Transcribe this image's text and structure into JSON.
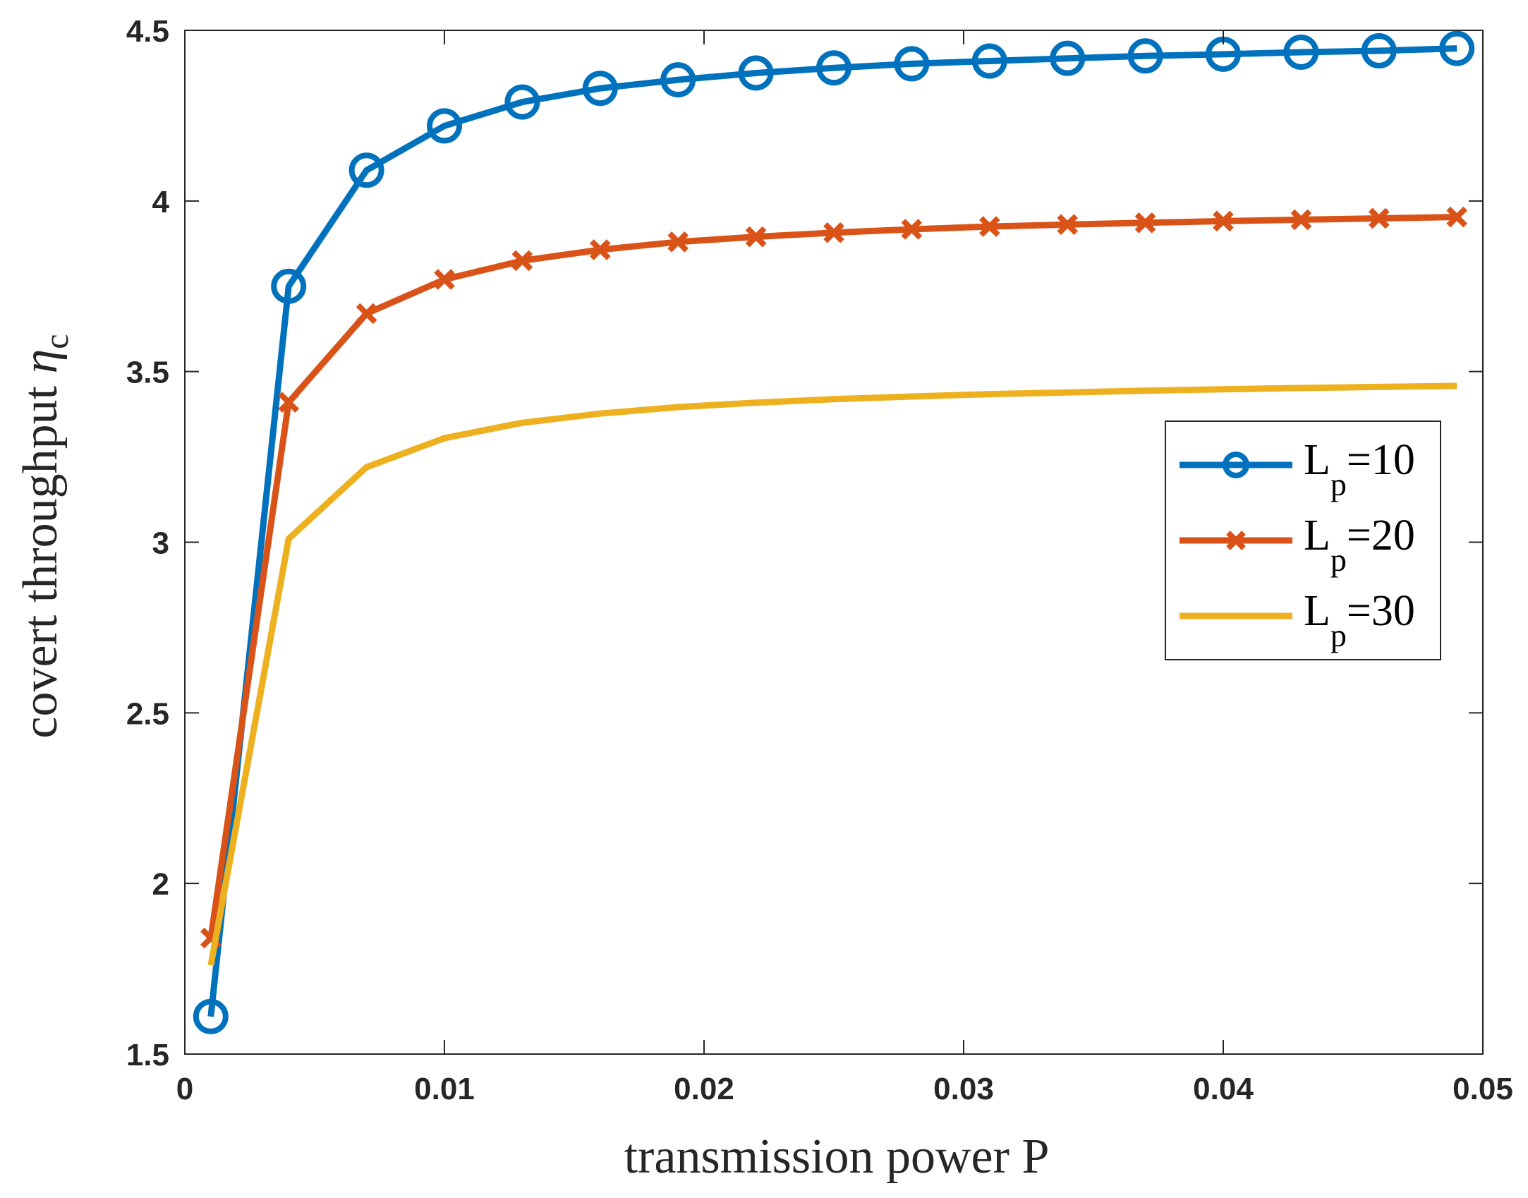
{
  "chart_data": {
    "type": "line",
    "xlabel": "transmission power P",
    "ylabel_text": "covert throughput ",
    "ylabel_symbol": "η",
    "ylabel_subscript": "c",
    "xlim": [
      0,
      0.05
    ],
    "ylim": [
      1.5,
      4.5
    ],
    "xticks": [
      0,
      0.01,
      0.02,
      0.03,
      0.04,
      0.05
    ],
    "xtick_labels": [
      "0",
      "0.01",
      "0.02",
      "0.03",
      "0.04",
      "0.05"
    ],
    "yticks": [
      1.5,
      2,
      2.5,
      3,
      3.5,
      4,
      4.5
    ],
    "ytick_labels": [
      "1.5",
      "2",
      "2.5",
      "3",
      "3.5",
      "4",
      "4.5"
    ],
    "grid": false,
    "legend_position": "right",
    "x": [
      0.001,
      0.004,
      0.007,
      0.01,
      0.013,
      0.016,
      0.019,
      0.022,
      0.025,
      0.028,
      0.031,
      0.034,
      0.037,
      0.04,
      0.043,
      0.046,
      0.049
    ],
    "series": [
      {
        "legend_main": "L",
        "legend_sub": "p",
        "legend_value": "=10",
        "color": "#0072BD",
        "marker": "circle",
        "values": [
          1.61,
          3.75,
          4.09,
          4.22,
          4.29,
          4.33,
          4.355,
          4.375,
          4.39,
          4.402,
          4.41,
          4.418,
          4.425,
          4.43,
          4.436,
          4.44,
          4.447
        ]
      },
      {
        "legend_main": "L",
        "legend_sub": "p",
        "legend_value": "=20",
        "color": "#D95319",
        "marker": "x",
        "values": [
          1.84,
          3.41,
          3.67,
          3.77,
          3.825,
          3.857,
          3.88,
          3.895,
          3.907,
          3.917,
          3.925,
          3.931,
          3.936,
          3.941,
          3.945,
          3.949,
          3.953
        ]
      },
      {
        "legend_main": "L",
        "legend_sub": "p",
        "legend_value": "=30",
        "color": "#EDB120",
        "marker": "none",
        "values": [
          1.76,
          3.01,
          3.22,
          3.305,
          3.35,
          3.377,
          3.396,
          3.409,
          3.419,
          3.427,
          3.434,
          3.439,
          3.444,
          3.448,
          3.452,
          3.455,
          3.458
        ]
      }
    ]
  }
}
